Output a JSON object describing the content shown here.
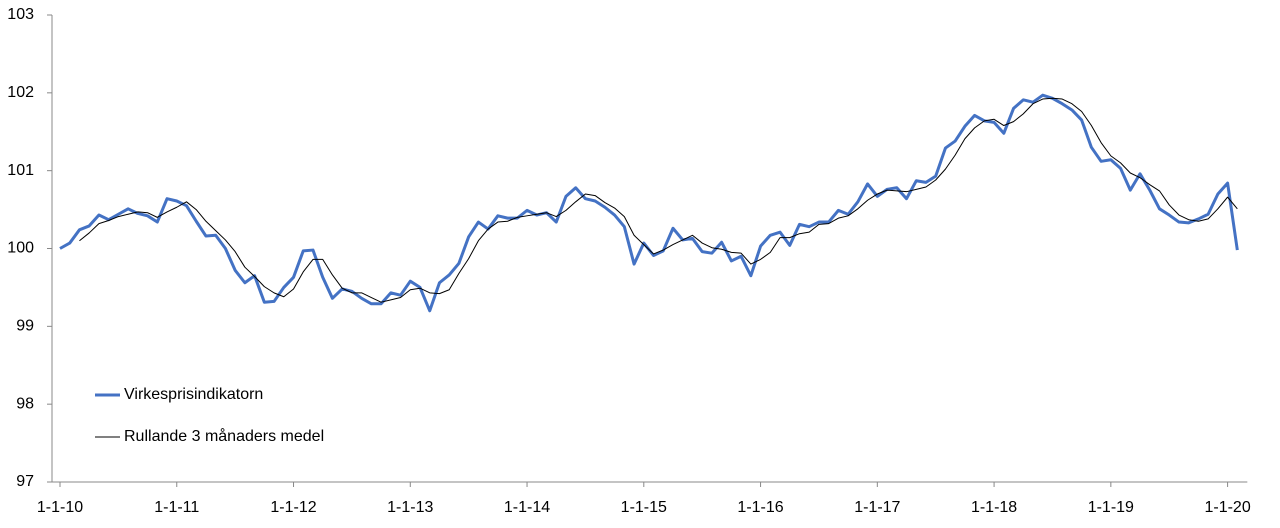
{
  "chart_data": {
    "type": "line",
    "categories": [
      "1-1-10",
      null,
      null,
      null,
      null,
      null,
      null,
      null,
      null,
      null,
      null,
      null,
      "1-1-11",
      null,
      null,
      null,
      null,
      null,
      null,
      null,
      null,
      null,
      null,
      null,
      "1-1-12",
      null,
      null,
      null,
      null,
      null,
      null,
      null,
      null,
      null,
      null,
      null,
      "1-1-13",
      null,
      null,
      null,
      null,
      null,
      null,
      null,
      null,
      null,
      null,
      null,
      "1-1-14",
      null,
      null,
      null,
      null,
      null,
      null,
      null,
      null,
      null,
      null,
      null,
      "1-1-15",
      null,
      null,
      null,
      null,
      null,
      null,
      null,
      null,
      null,
      null,
      null,
      "1-1-16",
      null,
      null,
      null,
      null,
      null,
      null,
      null,
      null,
      null,
      null,
      null,
      "1-1-17",
      null,
      null,
      null,
      null,
      null,
      null,
      null,
      null,
      null,
      null,
      null,
      "1-1-18",
      null,
      null,
      null,
      null,
      null,
      null,
      null,
      null,
      null,
      null,
      null,
      "1-1-19",
      null,
      null,
      null,
      null,
      null,
      null,
      null,
      null,
      null,
      null,
      null,
      "1-1-20",
      null
    ],
    "series": [
      {
        "name": "Virkesprisindikatorn",
        "color": "#4472c4",
        "width": 3,
        "values": [
          100.0,
          100.07,
          100.24,
          100.29,
          100.43,
          100.37,
          100.44,
          100.51,
          100.45,
          100.42,
          100.34,
          100.64,
          100.61,
          100.55,
          100.35,
          100.16,
          100.17,
          100.0,
          99.72,
          99.56,
          99.65,
          99.31,
          99.32,
          99.5,
          99.63,
          99.97,
          99.98,
          99.63,
          99.36,
          99.48,
          99.45,
          99.36,
          99.29,
          99.29,
          99.43,
          99.4,
          99.58,
          99.5,
          99.2,
          99.56,
          99.66,
          99.81,
          100.15,
          100.34,
          100.25,
          100.42,
          100.39,
          100.39,
          100.49,
          100.43,
          100.46,
          100.34,
          100.67,
          100.78,
          100.64,
          100.61,
          100.53,
          100.43,
          100.28,
          99.8,
          100.07,
          99.91,
          99.97,
          100.26,
          100.11,
          100.13,
          99.96,
          99.94,
          100.08,
          99.84,
          99.9,
          99.65,
          100.03,
          100.17,
          100.21,
          100.04,
          100.31,
          100.28,
          100.34,
          100.34,
          100.49,
          100.44,
          100.6,
          100.83,
          100.67,
          100.76,
          100.78,
          100.64,
          100.87,
          100.85,
          100.93,
          101.29,
          101.38,
          101.57,
          101.71,
          101.64,
          101.62,
          101.48,
          101.8,
          101.91,
          101.88,
          101.97,
          101.93,
          101.86,
          101.78,
          101.65,
          101.3,
          101.12,
          101.14,
          101.03,
          100.75,
          100.96,
          100.75,
          100.51,
          100.43,
          100.34,
          100.33,
          100.38,
          100.44,
          100.7,
          100.84,
          99.98
        ]
      },
      {
        "name": "Rullande 3 månaders medel",
        "color": "#000000",
        "width": 1,
        "values": [
          null,
          null,
          100.1,
          100.2,
          100.32,
          100.36,
          100.41,
          100.44,
          100.47,
          100.46,
          100.4,
          100.47,
          100.53,
          100.6,
          100.5,
          100.35,
          100.23,
          100.11,
          99.96,
          99.76,
          99.64,
          99.51,
          99.43,
          99.38,
          99.48,
          99.7,
          99.86,
          99.86,
          99.66,
          99.49,
          99.43,
          99.43,
          99.37,
          99.31,
          99.34,
          99.37,
          99.47,
          99.49,
          99.43,
          99.42,
          99.47,
          99.68,
          99.87,
          100.1,
          100.25,
          100.34,
          100.35,
          100.4,
          100.42,
          100.44,
          100.46,
          100.41,
          100.49,
          100.6,
          100.7,
          100.68,
          100.59,
          100.52,
          100.41,
          100.17,
          100.05,
          99.93,
          99.98,
          100.05,
          100.11,
          100.17,
          100.07,
          100.01,
          99.99,
          99.95,
          99.94,
          99.8,
          99.86,
          99.95,
          100.14,
          100.14,
          100.19,
          100.21,
          100.31,
          100.32,
          100.39,
          100.42,
          100.51,
          100.62,
          100.7,
          100.75,
          100.74,
          100.73,
          100.76,
          100.79,
          100.88,
          101.02,
          101.2,
          101.41,
          101.55,
          101.64,
          101.66,
          101.58,
          101.63,
          101.73,
          101.86,
          101.92,
          101.93,
          101.92,
          101.86,
          101.76,
          101.58,
          101.36,
          101.19,
          101.1,
          100.97,
          100.91,
          100.82,
          100.74,
          100.56,
          100.43,
          100.37,
          100.35,
          100.38,
          100.51,
          100.66,
          100.51
        ]
      }
    ],
    "ylim": [
      97,
      103
    ],
    "yticks": [
      97,
      98,
      99,
      100,
      101,
      102,
      103
    ],
    "grid": false,
    "legend": "lower-left"
  }
}
